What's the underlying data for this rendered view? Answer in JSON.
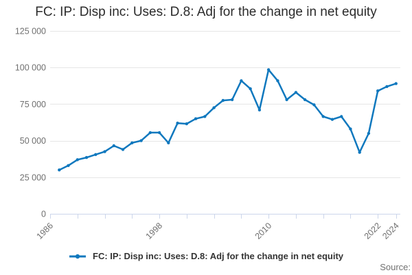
{
  "chart_data": {
    "type": "line",
    "title": "FC: IP: Disp inc: Uses: D.8: Adj for the change in net equity",
    "xlabel": "",
    "ylabel": "",
    "xlim": [
      1986,
      2024.4
    ],
    "ylim": [
      0,
      125000
    ],
    "grid": "horizontal",
    "legend_position": "bottom",
    "yticks": [
      {
        "value": 0,
        "label": "0"
      },
      {
        "value": 25000,
        "label": "25 000"
      },
      {
        "value": 50000,
        "label": "50 000"
      },
      {
        "value": 75000,
        "label": "75 000"
      },
      {
        "value": 100000,
        "label": "100 000"
      },
      {
        "value": 125000,
        "label": "125 000"
      }
    ],
    "xticks": [
      1986,
      1989,
      1992,
      1995,
      1998,
      2001,
      2004,
      2007,
      2010,
      2013,
      2016,
      2019,
      2022,
      2024
    ],
    "xtick_labels": [
      {
        "year": 1986,
        "label": "1986"
      },
      {
        "year": 1998,
        "label": "1998"
      },
      {
        "year": 2010,
        "label": "2010"
      },
      {
        "year": 2022,
        "label": "2022"
      },
      {
        "year": 2024,
        "label": "2024"
      }
    ],
    "series": [
      {
        "name": "FC: IP: Disp inc: Uses: D.8: Adj for the change in net equity",
        "x": [
          1987,
          1988,
          1989,
          1990,
          1991,
          1992,
          1993,
          1994,
          1995,
          1996,
          1997,
          1998,
          1999,
          2000,
          2001,
          2002,
          2003,
          2004,
          2005,
          2006,
          2007,
          2008,
          2009,
          2010,
          2011,
          2012,
          2013,
          2014,
          2015,
          2016,
          2017,
          2018,
          2019,
          2020,
          2021,
          2022,
          2023,
          2024
        ],
        "values": [
          30000,
          33000,
          37000,
          38500,
          40500,
          42500,
          46500,
          44000,
          48500,
          50000,
          55500,
          55500,
          48500,
          62000,
          61500,
          65000,
          66500,
          72500,
          77500,
          78000,
          91000,
          85500,
          71000,
          98500,
          91000,
          78000,
          83000,
          78000,
          74500,
          66500,
          64500,
          66500,
          58000,
          42000,
          55000,
          84000,
          87000,
          89000
        ]
      }
    ]
  },
  "footer": {
    "source_label": "Source:"
  },
  "colors": {
    "series": "#0f78be",
    "grid": "#e6e6e6",
    "axis": "#ccd6eb",
    "tick_label": "#6f6f6f",
    "title": "#2b2b2b",
    "legend_text": "#333333"
  }
}
